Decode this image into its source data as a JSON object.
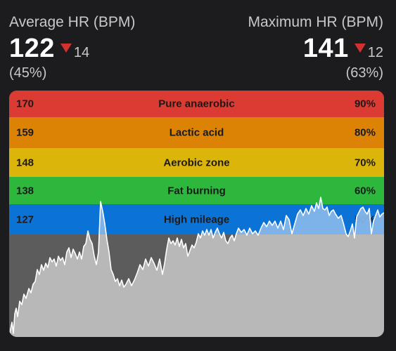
{
  "average": {
    "title": "Average HR (BPM)",
    "value": "122",
    "delta": "14",
    "percent": "(45%)"
  },
  "maximum": {
    "title": "Maximum HR (BPM)",
    "value": "141",
    "delta": "12",
    "percent": "(63%)"
  },
  "zones": [
    {
      "bpm": "170",
      "name": "Pure anaerobic",
      "pct": "90%",
      "color": "#dc3b33"
    },
    {
      "bpm": "159",
      "name": "Lactic acid",
      "pct": "80%",
      "color": "#dc8205"
    },
    {
      "bpm": "148",
      "name": "Aerobic zone",
      "pct": "70%",
      "color": "#dcb50b"
    },
    {
      "bpm": "138",
      "name": "Fat burning",
      "pct": "60%",
      "color": "#2db83d"
    },
    {
      "bpm": "127",
      "name": "High mileage",
      "pct": "50%",
      "color": "#0b73d6"
    }
  ],
  "colors": {
    "delta_arrow": "#d1322f",
    "below_zone_background": "#5c5c5c",
    "hr_fill": "#b8b8b8",
    "hr_fill_in_zone": "#89b8ea",
    "hr_line": "#ffffff"
  }
}
